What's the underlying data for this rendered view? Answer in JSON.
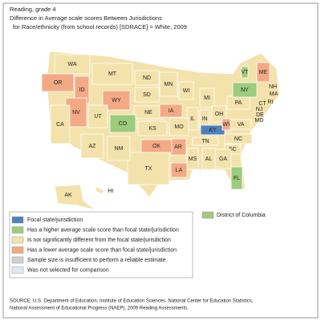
{
  "header": {
    "lines": [
      "Reading, grade 4",
      "Difference in Average scale scores Between Jurisdictions",
      "for Race/ethnicity (from school records) [SDRACE] = White,  2009"
    ]
  },
  "legend": [
    {
      "label": "Focal state/jurisdiction",
      "color": "#4f81bd"
    },
    {
      "label": "Has a higher average scale score than focal state/jurisdiction",
      "color": "#9ccc7c"
    },
    {
      "label": "Is not significantly different from the focal state/jurisdiction",
      "color": "#f3e2ab"
    },
    {
      "label": "Has a lower average scale score than focal state/jurisdiction",
      "color": "#f4a985"
    },
    {
      "label": "Sample size is insufficient to perform a reliable estimate",
      "color": "#cfcfcf"
    },
    {
      "label": "Was not selected for comparison",
      "color": "#dfe8f1"
    }
  ],
  "dc": {
    "label": "District of Columbia",
    "legend_item": 1
  },
  "states": [
    {
      "label": "WA",
      "legend_item": 2
    },
    {
      "label": "OR",
      "legend_item": 3
    },
    {
      "label": "ID",
      "legend_item": 3
    },
    {
      "label": "MT",
      "legend_item": 2
    },
    {
      "label": "WY",
      "legend_item": 3
    },
    {
      "label": "ND",
      "legend_item": 2
    },
    {
      "label": "SD",
      "legend_item": 2
    },
    {
      "label": "NE",
      "legend_item": 2
    },
    {
      "label": "MN",
      "legend_item": 2
    },
    {
      "label": "WI",
      "legend_item": 2
    },
    {
      "label": "IA",
      "legend_item": 3
    },
    {
      "label": "IL",
      "legend_item": 2
    },
    {
      "label": "MI",
      "legend_item": 2
    },
    {
      "label": "IN",
      "legend_item": 2
    },
    {
      "label": "OH",
      "legend_item": 2
    },
    {
      "label": "KY",
      "legend_item": 0
    },
    {
      "label": "WV",
      "legend_item": 3
    },
    {
      "label": "VA",
      "legend_item": 2
    },
    {
      "label": "PA",
      "legend_item": 2
    },
    {
      "label": "NY",
      "legend_item": 1
    },
    {
      "label": "VT",
      "legend_item": 1
    },
    {
      "label": "NH",
      "legend_item": 2
    },
    {
      "label": "ME",
      "legend_item": 3
    },
    {
      "label": "MA",
      "legend_item": 1
    },
    {
      "label": "RI",
      "legend_item": 2
    },
    {
      "label": "CT",
      "legend_item": 2
    },
    {
      "label": "NJ",
      "legend_item": 1
    },
    {
      "label": "DE",
      "legend_item": 2
    },
    {
      "label": "MD",
      "legend_item": 2
    },
    {
      "label": "NC",
      "legend_item": 2
    },
    {
      "label": "SC",
      "legend_item": 2
    },
    {
      "label": "GA",
      "legend_item": 2
    },
    {
      "label": "FL",
      "legend_item": 1
    },
    {
      "label": "AL",
      "legend_item": 2
    },
    {
      "label": "MS",
      "legend_item": 2
    },
    {
      "label": "TN",
      "legend_item": 2
    },
    {
      "label": "AR",
      "legend_item": 3
    },
    {
      "label": "LA",
      "legend_item": 3
    },
    {
      "label": "OK",
      "legend_item": 3
    },
    {
      "label": "TX",
      "legend_item": 2
    },
    {
      "label": "KS",
      "legend_item": 2
    },
    {
      "label": "CO",
      "legend_item": 1
    },
    {
      "label": "UT",
      "legend_item": 2
    },
    {
      "label": "NV",
      "legend_item": 3
    },
    {
      "label": "CA",
      "legend_item": 2
    },
    {
      "label": "AZ",
      "legend_item": 2
    },
    {
      "label": "NM",
      "legend_item": 2
    },
    {
      "label": "MO",
      "legend_item": 2
    },
    {
      "label": "AK",
      "legend_item": 2
    },
    {
      "label": "HI",
      "legend_item": 2
    }
  ],
  "source": [
    "SOURCE: U.S. Department of Education, Institute of Education Sciences, National Center for Education Statistics,",
    "National Assessment of Educational Progress (NAEP), 2009 Reading Assessments."
  ]
}
